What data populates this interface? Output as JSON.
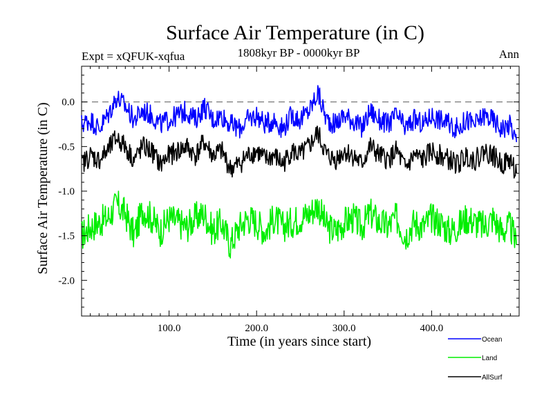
{
  "chart_data": {
    "type": "line",
    "title": "Surface Air Temperature (in C)",
    "subtitle": "1808kyr BP - 0000kyr BP",
    "top_left_label": "Expt = xQFUK-xqfua",
    "top_right_label": "Ann",
    "xlabel": "Time (in years since start)",
    "ylabel": "Surface Air Temperature (in C)",
    "xlim": [
      0,
      500
    ],
    "ylim": [
      -2.4,
      0.4
    ],
    "xticks": [
      100,
      200,
      300,
      400
    ],
    "xtick_labels": [
      "100.0",
      "200.0",
      "300.0",
      "400.0"
    ],
    "yticks": [
      0.0,
      -0.5,
      -1.0,
      -1.5,
      -2.0
    ],
    "ytick_labels": [
      "0.0",
      "-0.5",
      "-1.0",
      "-1.5",
      "-2.0"
    ],
    "reference_line": 0.0,
    "legend_position": "bottom-right, below plot",
    "series": [
      {
        "name": "Ocean",
        "color": "#0000ff",
        "x": [
          0,
          10,
          20,
          30,
          40,
          50,
          60,
          70,
          80,
          90,
          100,
          110,
          120,
          130,
          140,
          150,
          160,
          170,
          180,
          190,
          200,
          210,
          220,
          230,
          240,
          250,
          260,
          270,
          280,
          290,
          300,
          310,
          320,
          330,
          340,
          350,
          360,
          370,
          380,
          390,
          400,
          410,
          420,
          430,
          440,
          450,
          460,
          470,
          480,
          490,
          497
        ],
        "values": [
          -0.25,
          -0.2,
          -0.3,
          -0.15,
          0.05,
          -0.05,
          -0.2,
          -0.1,
          -0.15,
          -0.25,
          -0.2,
          -0.15,
          -0.1,
          -0.2,
          -0.05,
          -0.2,
          -0.15,
          -0.25,
          -0.3,
          -0.2,
          -0.15,
          -0.25,
          -0.2,
          -0.3,
          -0.15,
          -0.2,
          -0.1,
          0.1,
          -0.2,
          -0.25,
          -0.15,
          -0.2,
          -0.3,
          -0.1,
          -0.2,
          -0.25,
          -0.15,
          -0.3,
          -0.2,
          -0.25,
          -0.15,
          -0.2,
          -0.25,
          -0.3,
          -0.2,
          -0.25,
          -0.15,
          -0.2,
          -0.3,
          -0.25,
          -0.45
        ]
      },
      {
        "name": "Land",
        "color": "#00ee00",
        "x": [
          0,
          10,
          20,
          30,
          40,
          50,
          60,
          70,
          80,
          90,
          100,
          110,
          120,
          130,
          140,
          150,
          160,
          170,
          180,
          190,
          200,
          210,
          220,
          230,
          240,
          250,
          260,
          270,
          280,
          290,
          300,
          310,
          320,
          330,
          340,
          350,
          360,
          370,
          380,
          390,
          400,
          410,
          420,
          430,
          440,
          450,
          460,
          470,
          480,
          490,
          497
        ],
        "values": [
          -1.5,
          -1.4,
          -1.35,
          -1.3,
          -1.15,
          -1.25,
          -1.5,
          -1.2,
          -1.3,
          -1.45,
          -1.3,
          -1.35,
          -1.4,
          -1.3,
          -1.25,
          -1.45,
          -1.35,
          -1.6,
          -1.4,
          -1.3,
          -1.35,
          -1.45,
          -1.3,
          -1.4,
          -1.35,
          -1.3,
          -1.25,
          -1.15,
          -1.4,
          -1.45,
          -1.35,
          -1.3,
          -1.4,
          -1.25,
          -1.35,
          -1.4,
          -1.3,
          -1.5,
          -1.35,
          -1.4,
          -1.3,
          -1.35,
          -1.45,
          -1.4,
          -1.3,
          -1.35,
          -1.4,
          -1.3,
          -1.45,
          -1.4,
          -1.6
        ]
      },
      {
        "name": "AllSurf",
        "color": "#000000",
        "x": [
          0,
          10,
          20,
          30,
          40,
          50,
          60,
          70,
          80,
          90,
          100,
          110,
          120,
          130,
          140,
          150,
          160,
          170,
          180,
          190,
          200,
          210,
          220,
          230,
          240,
          250,
          260,
          270,
          280,
          290,
          300,
          310,
          320,
          330,
          340,
          350,
          360,
          370,
          380,
          390,
          400,
          410,
          420,
          430,
          440,
          450,
          460,
          470,
          480,
          490,
          497
        ],
        "values": [
          -0.7,
          -0.6,
          -0.65,
          -0.55,
          -0.4,
          -0.5,
          -0.65,
          -0.5,
          -0.55,
          -0.7,
          -0.6,
          -0.55,
          -0.5,
          -0.6,
          -0.45,
          -0.6,
          -0.55,
          -0.75,
          -0.7,
          -0.6,
          -0.55,
          -0.65,
          -0.6,
          -0.7,
          -0.55,
          -0.6,
          -0.5,
          -0.35,
          -0.6,
          -0.65,
          -0.55,
          -0.6,
          -0.7,
          -0.5,
          -0.6,
          -0.65,
          -0.55,
          -0.75,
          -0.6,
          -0.65,
          -0.55,
          -0.6,
          -0.65,
          -0.7,
          -0.6,
          -0.65,
          -0.55,
          -0.6,
          -0.7,
          -0.65,
          -0.8
        ]
      }
    ]
  }
}
